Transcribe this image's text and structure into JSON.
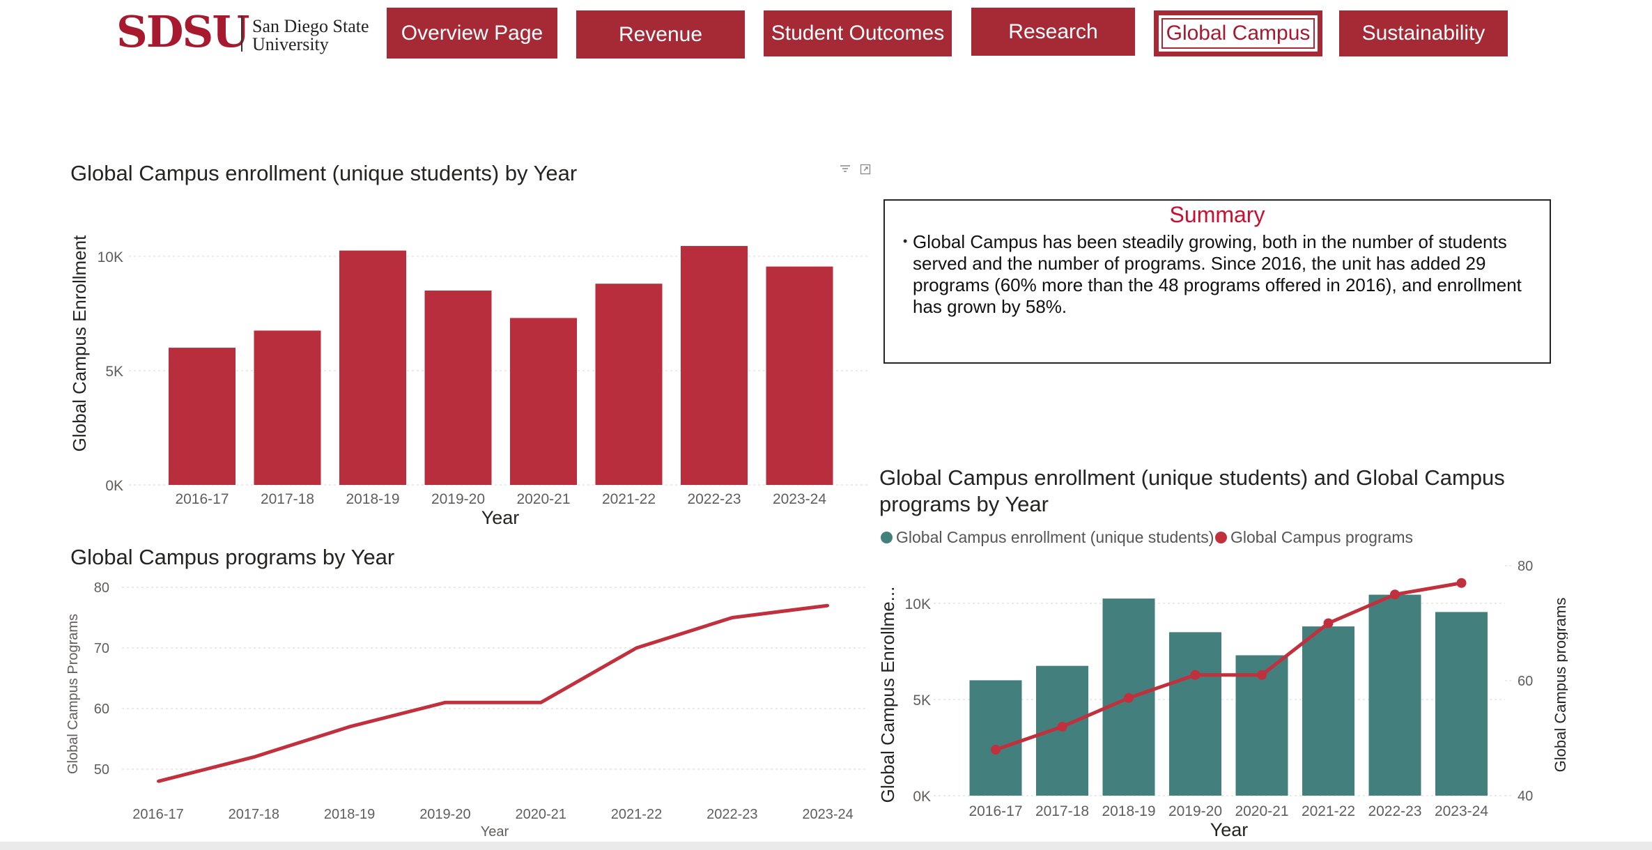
{
  "header": {
    "logo_mark": "SDSU",
    "logo_line1": "San Diego State",
    "logo_line2": "University",
    "nav": [
      {
        "label": "Overview Page"
      },
      {
        "label": "Revenue"
      },
      {
        "label": "Student Outcomes"
      },
      {
        "label": "Research"
      },
      {
        "label": "Global Campus",
        "active": true
      },
      {
        "label": "Sustainability"
      }
    ]
  },
  "colors": {
    "brand": "#a62a36",
    "bar_red": "#b82e3c",
    "line_red": "#c0313d",
    "teal": "#427f7d",
    "grid": "#d6d6d6",
    "axis_text": "#605e5c"
  },
  "icons": [
    "filter-icon",
    "focus-mode-icon"
  ],
  "summary": {
    "title": "Summary",
    "text": "Global Campus has been steadily growing, both in the number of students served and the number of programs. Since 2016, the unit has added 29 programs (60% more than the 48 programs offered in 2016), and enrollment has grown by 58%."
  },
  "chart_data": [
    {
      "type": "bar",
      "title": "Global Campus enrollment (unique students) by Year",
      "xlabel": "Year",
      "ylabel": "Global Campus Enrollment",
      "categories": [
        "2016-17",
        "2017-18",
        "2018-19",
        "2019-20",
        "2020-21",
        "2021-22",
        "2022-23",
        "2023-24"
      ],
      "values": [
        6000,
        6750,
        10250,
        8500,
        7300,
        8800,
        10450,
        9550
      ],
      "ylim": [
        0,
        11000
      ],
      "yticks": [
        {
          "v": 0,
          "label": "0K"
        },
        {
          "v": 5000,
          "label": "5K"
        },
        {
          "v": 10000,
          "label": "10K"
        }
      ],
      "grid": true
    },
    {
      "type": "line",
      "title": "Global Campus programs by Year",
      "xlabel": "Year",
      "ylabel": "Global Campus Programs",
      "categories": [
        "2016-17",
        "2017-18",
        "2018-19",
        "2019-20",
        "2020-21",
        "2021-22",
        "2022-23",
        "2023-24"
      ],
      "values": [
        48,
        52,
        57,
        61,
        61,
        70,
        75,
        77
      ],
      "ylim": [
        45,
        80
      ],
      "yticks": [
        {
          "v": 50,
          "label": "50"
        },
        {
          "v": 60,
          "label": "60"
        },
        {
          "v": 70,
          "label": "70"
        },
        {
          "v": 80,
          "label": "80"
        }
      ],
      "grid": true
    },
    {
      "type": "bar",
      "title": "Global Campus enrollment (unique students) and Global Campus programs by Year",
      "title_lines": [
        "Global Campus enrollment (unique students) and Global Campus",
        "programs by Year"
      ],
      "xlabel": "Year",
      "ylabel": "Global Campus Enrollme...",
      "ylabel2": "Global Campus programs",
      "legend": [
        "Global Campus enrollment (unique students)",
        "Global Campus programs"
      ],
      "categories": [
        "2016-17",
        "2017-18",
        "2018-19",
        "2019-20",
        "2020-21",
        "2021-22",
        "2022-23",
        "2023-24"
      ],
      "series": [
        {
          "name": "Global Campus enrollment (unique students)",
          "type": "bar",
          "axis": "left",
          "values": [
            6000,
            6750,
            10250,
            8500,
            7300,
            8800,
            10450,
            9550
          ]
        },
        {
          "name": "Global Campus programs",
          "type": "line",
          "axis": "right",
          "values": [
            48,
            52,
            57,
            61,
            61,
            70,
            75,
            77
          ]
        }
      ],
      "ylim": [
        0,
        11000
      ],
      "ylim2": [
        40,
        80
      ],
      "yticks": [
        {
          "v": 0,
          "label": "0K"
        },
        {
          "v": 5000,
          "label": "5K"
        },
        {
          "v": 10000,
          "label": "10K"
        }
      ],
      "yticks2": [
        {
          "v": 40,
          "label": "40"
        },
        {
          "v": 60,
          "label": "60"
        },
        {
          "v": 80,
          "label": "80"
        }
      ],
      "grid": true,
      "legend_position": "top-left"
    }
  ]
}
